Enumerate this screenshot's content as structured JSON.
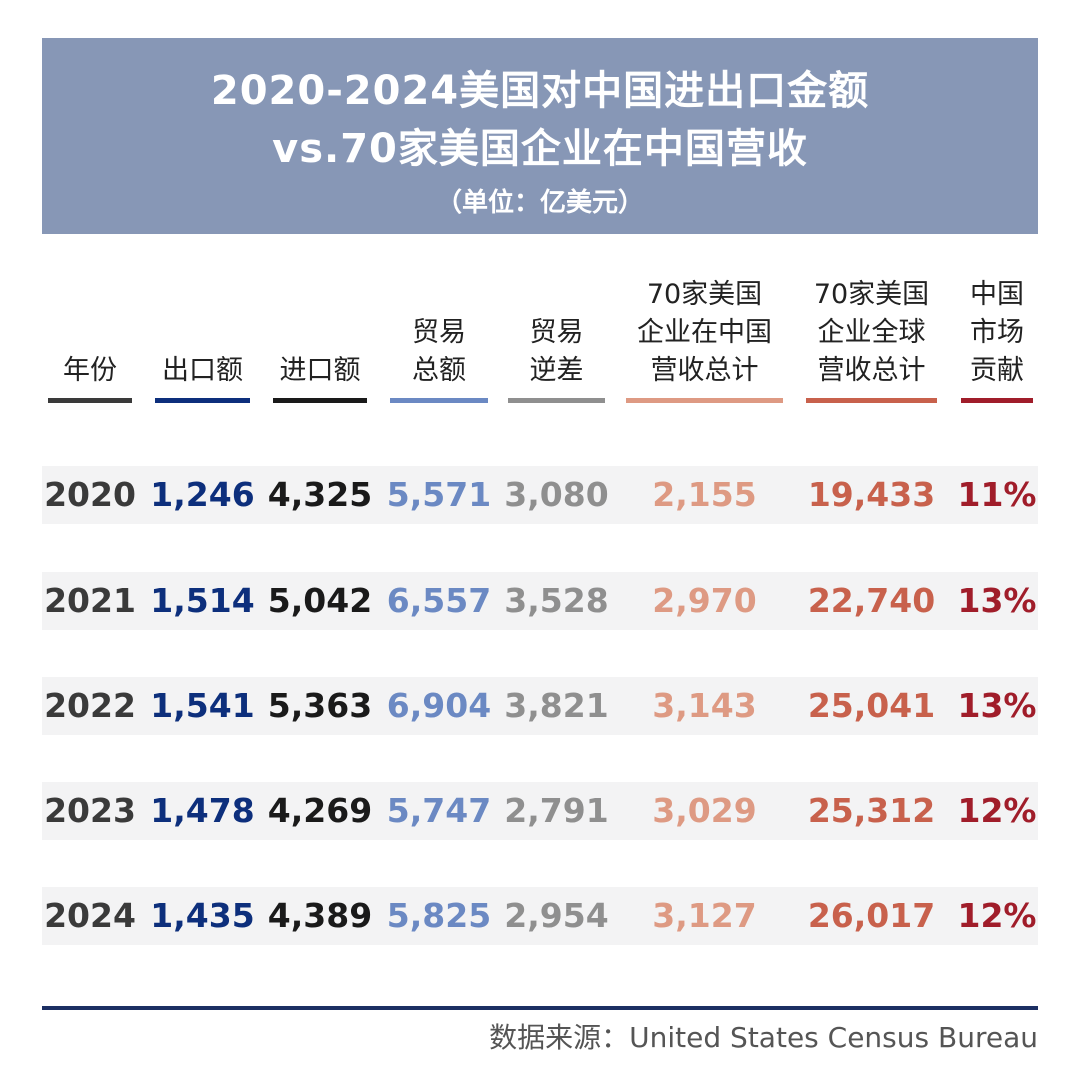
{
  "chart_data": {
    "type": "table",
    "title_lines": [
      "2020-2024美国对中国进出口金额",
      "vs.70家美国企业在中国营收"
    ],
    "unit": "（单位：亿美元）",
    "columns": [
      {
        "key": "year",
        "label_lines": [
          "年份"
        ],
        "color": "#3a3a3a"
      },
      {
        "key": "export",
        "label_lines": [
          "出口额"
        ],
        "color": "#0d2f7c"
      },
      {
        "key": "import",
        "label_lines": [
          "进口额"
        ],
        "color": "#1a1a1a"
      },
      {
        "key": "trade_total",
        "label_lines": [
          "贸易",
          "总额"
        ],
        "color": "#6b89c3"
      },
      {
        "key": "trade_deficit",
        "label_lines": [
          "贸易",
          "逆差"
        ],
        "color": "#8f8f8f"
      },
      {
        "key": "china_revenue",
        "label_lines": [
          "70家美国",
          "企业在中国",
          "营收总计"
        ],
        "color": "#de9a83"
      },
      {
        "key": "global_revenue",
        "label_lines": [
          "70家美国",
          "企业全球",
          "营收总计"
        ],
        "color": "#c8614c"
      },
      {
        "key": "china_share",
        "label_lines": [
          "中国",
          "市场",
          "贡献"
        ],
        "color": "#a01d2a"
      }
    ],
    "rows": [
      {
        "year": "2020",
        "export": "1,246",
        "import": "4,325",
        "trade_total": "5,571",
        "trade_deficit": "3,080",
        "china_revenue": "2,155",
        "global_revenue": "19,433",
        "china_share": "11%"
      },
      {
        "year": "2021",
        "export": "1,514",
        "import": "5,042",
        "trade_total": "6,557",
        "trade_deficit": "3,528",
        "china_revenue": "2,970",
        "global_revenue": "22,740",
        "china_share": "13%"
      },
      {
        "year": "2022",
        "export": "1,541",
        "import": "5,363",
        "trade_total": "6,904",
        "trade_deficit": "3,821",
        "china_revenue": "3,143",
        "global_revenue": "25,041",
        "china_share": "13%"
      },
      {
        "year": "2023",
        "export": "1,478",
        "import": "4,269",
        "trade_total": "5,747",
        "trade_deficit": "2,791",
        "china_revenue": "3,029",
        "global_revenue": "25,312",
        "china_share": "12%"
      },
      {
        "year": "2024",
        "export": "1,435",
        "import": "4,389",
        "trade_total": "5,825",
        "trade_deficit": "2,954",
        "china_revenue": "3,127",
        "global_revenue": "26,017",
        "china_share": "12%"
      }
    ],
    "source": "数据来源：United States Census Bureau"
  },
  "colors": {
    "banner": "#8797b6",
    "row_band": "#f3f3f4",
    "bottom_rule": "#1c2f63"
  }
}
